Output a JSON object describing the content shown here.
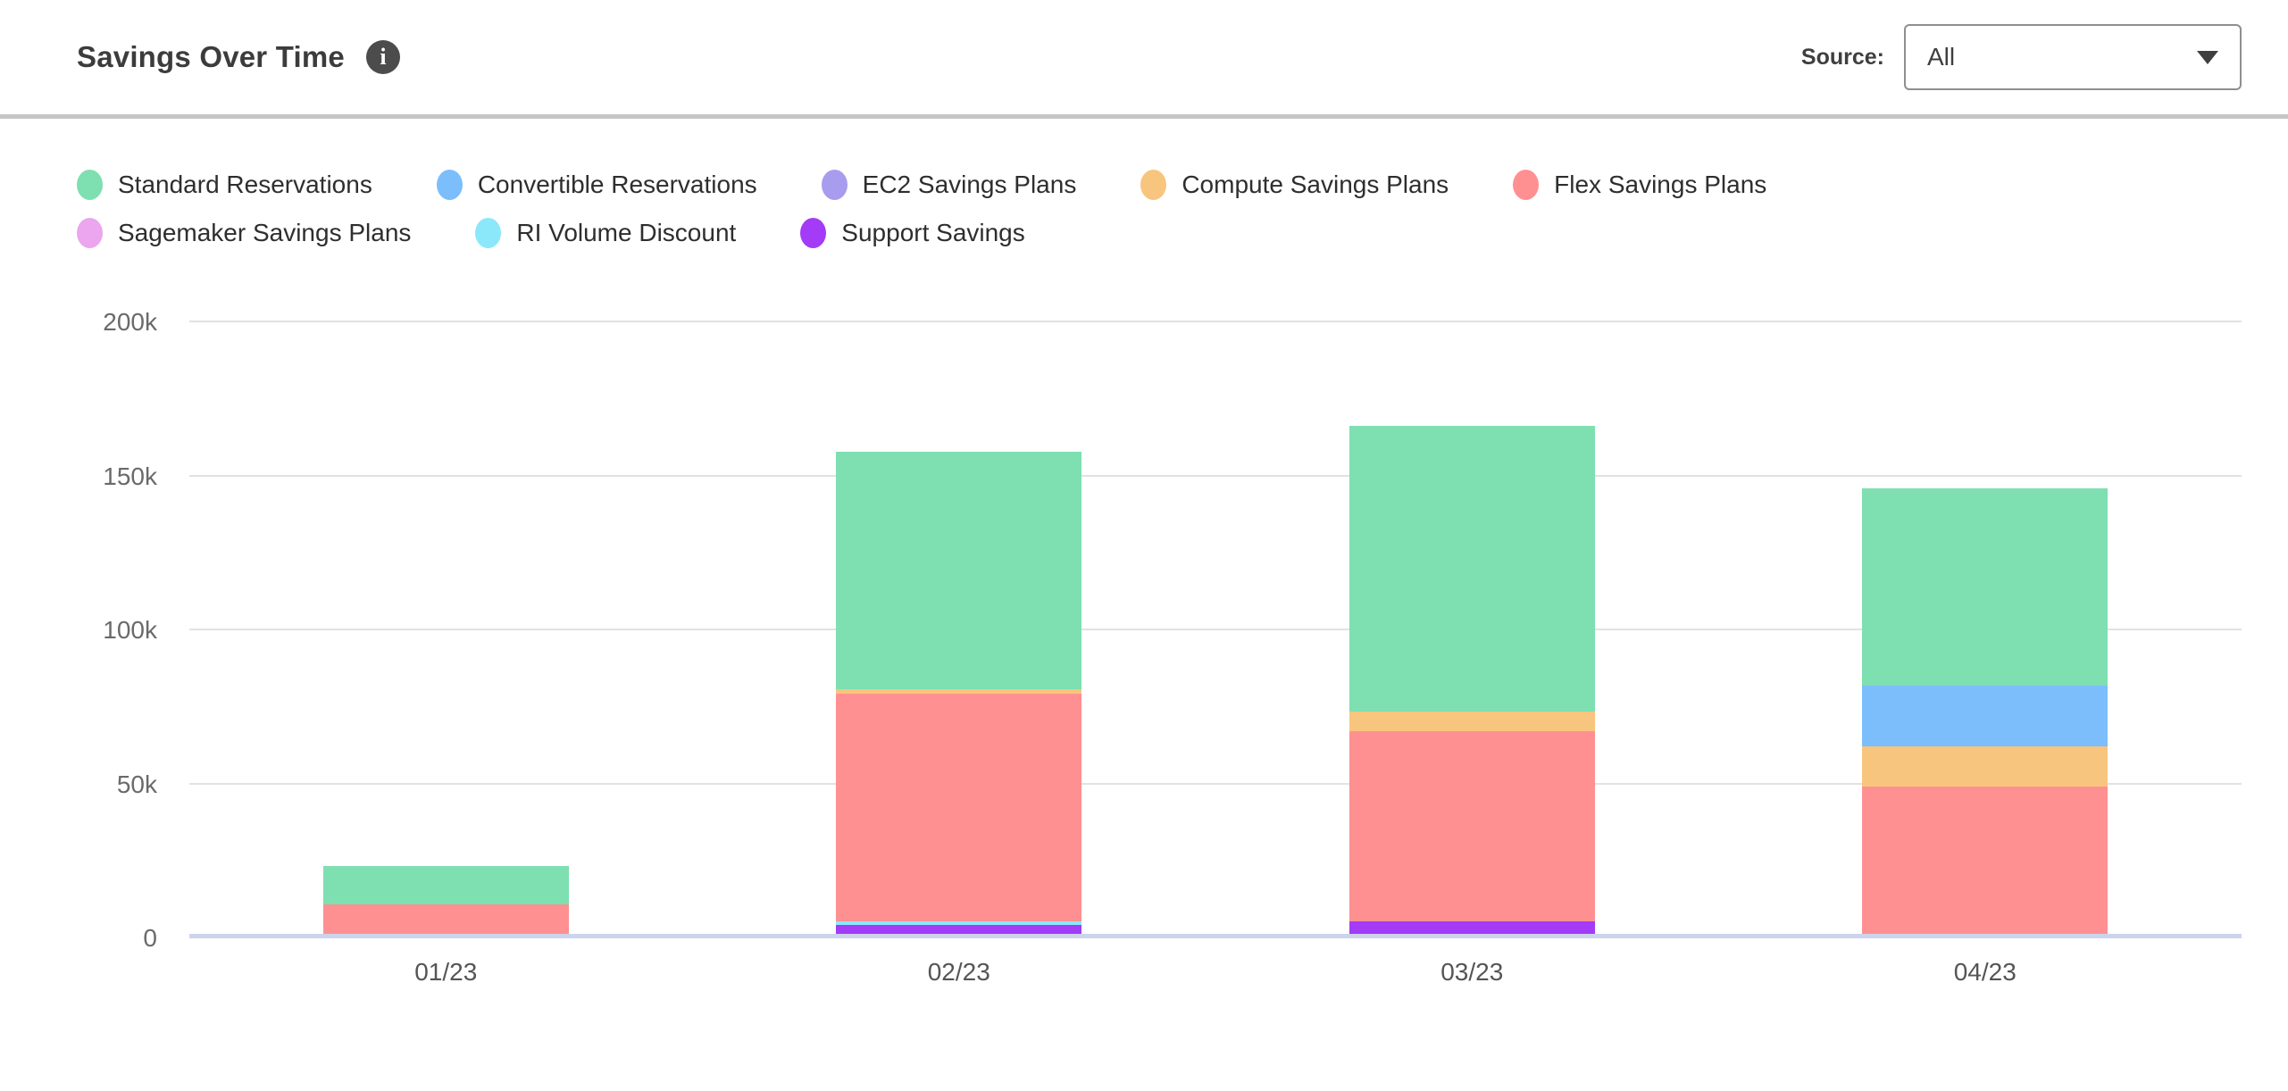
{
  "header": {
    "title": "Savings Over Time",
    "info_icon": "i",
    "source_label": "Source:",
    "source_value": "All"
  },
  "legend": {
    "items": [
      {
        "name": "Standard Reservations",
        "color": "#7edfb1"
      },
      {
        "name": "Convertible Reservations",
        "color": "#7cbefb"
      },
      {
        "name": "EC2 Savings Plans",
        "color": "#a89cef"
      },
      {
        "name": "Compute Savings Plans",
        "color": "#f8c57e"
      },
      {
        "name": "Flex Savings Plans",
        "color": "#ff9092"
      },
      {
        "name": "Sagemaker Savings Plans",
        "color": "#eba6ef"
      },
      {
        "name": "RI Volume Discount",
        "color": "#8be8fa"
      },
      {
        "name": "Support Savings",
        "color": "#a43bf6"
      }
    ]
  },
  "chart_data": {
    "type": "bar",
    "subtype": "stacked",
    "title": "Savings Over Time",
    "xlabel": "",
    "ylabel": "",
    "categories": [
      "01/23",
      "02/23",
      "03/23",
      "04/23"
    ],
    "series": [
      {
        "name": "Standard Reservations",
        "color": "#7edfb1",
        "values": [
          12400,
          77000,
          92800,
          64100
        ]
      },
      {
        "name": "Convertible Reservations",
        "color": "#7cbefb",
        "values": [
          0,
          0,
          0,
          19500
        ]
      },
      {
        "name": "EC2 Savings Plans",
        "color": "#a89cef",
        "values": [
          0,
          0,
          0,
          0
        ]
      },
      {
        "name": "Compute Savings Plans",
        "color": "#f8c57e",
        "values": [
          0,
          1700,
          6300,
          13200
        ]
      },
      {
        "name": "Flex Savings Plans",
        "color": "#ff9092",
        "values": [
          10100,
          73900,
          61800,
          49200
        ]
      },
      {
        "name": "Sagemaker Savings Plans",
        "color": "#eba6ef",
        "values": [
          0,
          0,
          0,
          0
        ]
      },
      {
        "name": "RI Volume Discount",
        "color": "#8be8fa",
        "values": [
          0,
          1100,
          0,
          0
        ]
      },
      {
        "name": "Support Savings",
        "color": "#a43bf6",
        "values": [
          900,
          4300,
          5500,
          0
        ]
      }
    ],
    "stack_order_bottom_to_top": [
      "Support Savings",
      "RI Volume Discount",
      "Flex Savings Plans",
      "Compute Savings Plans",
      "Convertible Reservations",
      "EC2 Savings Plans",
      "Sagemaker Savings Plans",
      "Standard Reservations"
    ],
    "totals": [
      23400,
      158000,
      166400,
      146000
    ],
    "y_ticks": [
      {
        "label": "0",
        "value": 0
      },
      {
        "label": "50k",
        "value": 50000
      },
      {
        "label": "100k",
        "value": 100000
      },
      {
        "label": "150k",
        "value": 150000
      },
      {
        "label": "200k",
        "value": 200000
      }
    ],
    "ylim": [
      0,
      200000
    ],
    "grid": true,
    "legend_position": "top"
  }
}
